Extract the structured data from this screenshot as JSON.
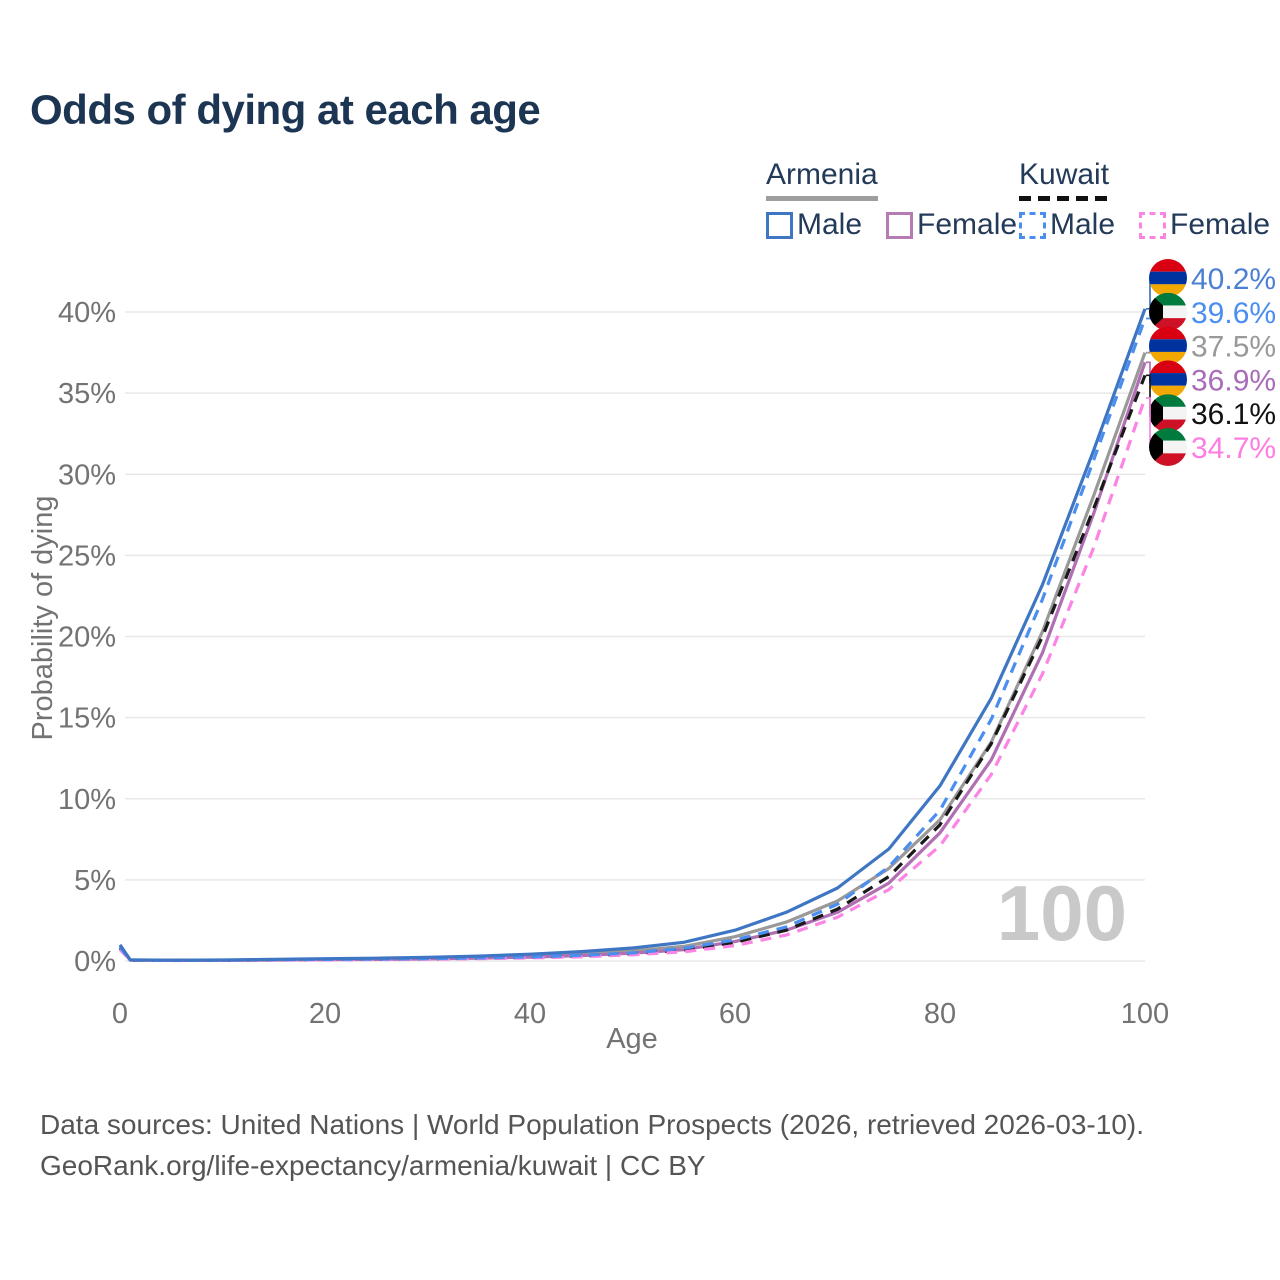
{
  "title": "Odds of dying at each age",
  "legend": {
    "groups": [
      {
        "name": "Armenia",
        "line_style": "solid",
        "underline_color": "#9e9e9e",
        "entries": [
          {
            "label": "Male",
            "color": "#3e76c4",
            "dashed": false
          },
          {
            "label": "Female",
            "color": "#b57bb2",
            "dashed": false
          }
        ]
      },
      {
        "name": "Kuwait",
        "line_style": "dashed",
        "underline_color": "#111111",
        "entries": [
          {
            "label": "Male",
            "color": "#4a8ef0",
            "dashed": true
          },
          {
            "label": "Female",
            "color": "#fb84e4",
            "dashed": true
          }
        ]
      }
    ]
  },
  "chart_data": {
    "type": "line",
    "title": "Odds of dying at each age",
    "xlabel": "Age",
    "ylabel": "Probability of dying",
    "xlim": [
      0,
      100
    ],
    "ylim": [
      0,
      42
    ],
    "xticks": [
      0,
      20,
      40,
      60,
      80,
      100
    ],
    "xticklabels": [
      "0",
      "20",
      "40",
      "60",
      "80",
      "100"
    ],
    "yticks": [
      0,
      5,
      10,
      15,
      20,
      25,
      30,
      35,
      40
    ],
    "yticklabels": [
      "0%",
      "5%",
      "10%",
      "15%",
      "20%",
      "25%",
      "30%",
      "35%",
      "40%"
    ],
    "grid": true,
    "legend_position": "top-right",
    "watermark": "100",
    "ages": [
      0,
      1,
      5,
      10,
      15,
      20,
      25,
      30,
      35,
      40,
      45,
      50,
      55,
      60,
      65,
      70,
      75,
      80,
      85,
      90,
      95,
      100
    ],
    "series": [
      {
        "name": "Armenia Male",
        "country": "Armenia",
        "sex": "Male",
        "flag": "armenia",
        "color": "#3e76c4",
        "label_color": "#4c80d2",
        "dashed": false,
        "end_label": "40.2%",
        "values": [
          1.0,
          0.07,
          0.05,
          0.06,
          0.1,
          0.14,
          0.17,
          0.22,
          0.3,
          0.42,
          0.58,
          0.8,
          1.15,
          1.9,
          3.0,
          4.5,
          6.9,
          10.8,
          16.2,
          23.2,
          31.5,
          40.2
        ]
      },
      {
        "name": "Kuwait Male",
        "country": "Kuwait",
        "sex": "Male",
        "flag": "kuwait",
        "color": "#4a8ef0",
        "label_color": "#4a8ef0",
        "dashed": true,
        "end_label": "39.6%",
        "values": [
          0.85,
          0.06,
          0.04,
          0.05,
          0.08,
          0.1,
          0.12,
          0.15,
          0.19,
          0.25,
          0.35,
          0.5,
          0.78,
          1.3,
          2.1,
          3.5,
          5.8,
          9.3,
          14.9,
          22.3,
          30.9,
          39.6
        ]
      },
      {
        "name": "Armenia Both sexes",
        "country": "Armenia",
        "sex": "Both",
        "flag": "armenia",
        "color": "#999999",
        "label_color": "#999999",
        "dashed": false,
        "end_label": "37.5%",
        "values": [
          0.9,
          0.06,
          0.05,
          0.05,
          0.08,
          0.11,
          0.13,
          0.17,
          0.23,
          0.32,
          0.45,
          0.62,
          0.9,
          1.5,
          2.4,
          3.7,
          5.7,
          8.7,
          13.5,
          20.3,
          28.7,
          37.5
        ]
      },
      {
        "name": "Armenia Female",
        "country": "Armenia",
        "sex": "Female",
        "flag": "armenia",
        "color": "#b06fb2",
        "label_color": "#a96cb8",
        "dashed": false,
        "end_label": "36.9%",
        "values": [
          0.8,
          0.05,
          0.04,
          0.04,
          0.06,
          0.08,
          0.1,
          0.13,
          0.17,
          0.24,
          0.34,
          0.48,
          0.7,
          1.2,
          1.9,
          3.0,
          4.8,
          7.9,
          12.4,
          19.0,
          27.6,
          36.9
        ]
      },
      {
        "name": "Kuwait Both sexes",
        "country": "Kuwait",
        "sex": "Both",
        "flag": "kuwait",
        "color": "#1a1a1a",
        "label_color": "#111111",
        "dashed": true,
        "end_label": "36.1%",
        "values": [
          0.8,
          0.05,
          0.04,
          0.04,
          0.07,
          0.09,
          0.11,
          0.13,
          0.17,
          0.22,
          0.31,
          0.45,
          0.68,
          1.15,
          1.9,
          3.2,
          5.2,
          8.4,
          13.4,
          20.0,
          27.9,
          36.1
        ]
      },
      {
        "name": "Kuwait Female",
        "country": "Kuwait",
        "sex": "Female",
        "flag": "kuwait",
        "color": "#fb84e4",
        "label_color": "#ff7de2",
        "dashed": true,
        "end_label": "34.7%",
        "values": [
          0.7,
          0.05,
          0.03,
          0.04,
          0.05,
          0.07,
          0.09,
          0.11,
          0.14,
          0.19,
          0.26,
          0.38,
          0.57,
          0.95,
          1.6,
          2.7,
          4.4,
          7.1,
          11.5,
          17.7,
          25.5,
          34.7
        ]
      }
    ]
  },
  "flags": {
    "armenia": {
      "red": "#d90012",
      "blue": "#0033a0",
      "orange": "#f2a800"
    },
    "kuwait": {
      "green": "#007a3d",
      "white": "#f4f4f4",
      "red": "#ce1126",
      "black": "#000000"
    }
  },
  "sources": {
    "line1": "Data sources: United Nations | World Population Prospects (2026, retrieved 2026-03-10).",
    "line2": "GeoRank.org/life-expectancy/armenia/kuwait | CC BY"
  }
}
